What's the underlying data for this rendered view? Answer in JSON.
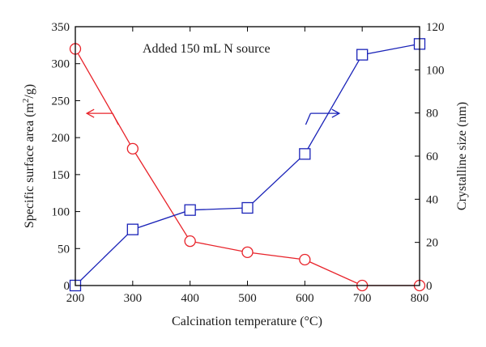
{
  "chart_data": {
    "type": "line",
    "annotation": "Added 150 mL N source",
    "xlabel": "Calcination temperature (°C)",
    "ylabel_left": "Specific surface area (m2/g)",
    "ylabel_right": "Crystalline size (nm)",
    "xlim": [
      200,
      800
    ],
    "ylim_left": [
      0,
      350
    ],
    "ylim_right": [
      0,
      120
    ],
    "x_ticks": [
      200,
      300,
      400,
      500,
      600,
      700,
      800
    ],
    "y_left_ticks": [
      0,
      50,
      100,
      150,
      200,
      250,
      300,
      350
    ],
    "y_right_ticks": [
      0,
      20,
      40,
      60,
      80,
      100,
      120
    ],
    "grid": false,
    "series": [
      {
        "axis": "left",
        "color": "#e8232a",
        "marker": "circle",
        "x": [
          200,
          300,
          400,
          500,
          600,
          700,
          800
        ],
        "values": [
          320,
          185,
          60,
          45,
          35,
          0,
          0
        ]
      },
      {
        "axis": "right",
        "color": "#1a23b8",
        "marker": "square",
        "x": [
          200,
          300,
          400,
          500,
          600,
          700,
          800
        ],
        "values": [
          0,
          26,
          35,
          36,
          61,
          107,
          112
        ]
      }
    ]
  }
}
